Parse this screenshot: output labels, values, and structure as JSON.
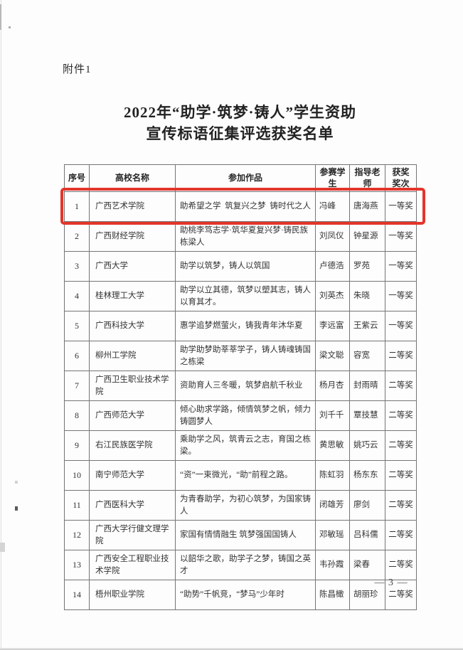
{
  "page": {
    "attachment_label": "附件1",
    "title_line1": "2022年“助学·筑梦·铸人”学生资助",
    "title_line2": "宣传标语征集评选获奖名单",
    "page_number": "— 3 —"
  },
  "highlight": {
    "row_index": 1,
    "color": "#e3352b"
  },
  "table": {
    "headers": [
      "序号",
      "高校名称",
      "参加作品",
      "参赛学\n生",
      "指导老\n师",
      "获奖\n奖次"
    ],
    "rows": [
      {
        "no": "1",
        "school": "广西艺术学院",
        "work": "助希望之学  筑复兴之梦  铸时代之人",
        "student": "冯峰",
        "teacher": "唐海燕",
        "award": "一等奖"
      },
      {
        "no": "2",
        "school": "广西财经学院",
        "work": "助桃李笃志学·筑华夏复兴梦·铸民族栋梁人",
        "student": "刘凤仪",
        "teacher": "钟星源",
        "award": "一等奖"
      },
      {
        "no": "3",
        "school": "广西大学",
        "work": "助学以筑梦，铸人以筑国",
        "student": "卢德浩",
        "teacher": "罗苑",
        "award": "一等奖"
      },
      {
        "no": "4",
        "school": "桂林理工大学",
        "work": "助学以立其德，筑梦以塑其志，铸人以育其才。",
        "student": "刘英杰",
        "teacher": "朱晓",
        "award": "一等奖"
      },
      {
        "no": "5",
        "school": "广西科技大学",
        "work": "惠学追梦燃萤火，铸我青年沐华夏",
        "student": "李远富",
        "teacher": "王紫云",
        "award": "一等奖"
      },
      {
        "no": "6",
        "school": "柳州工学院",
        "work": "助学助梦助莘莘学子，铸人铸魂铸国之栋梁",
        "student": "梁文聪",
        "teacher": "容宽",
        "award": "二等奖"
      },
      {
        "no": "7",
        "school": "广西卫生职业技术学院",
        "work": "资助育人三冬暖，筑梦启航千秋业",
        "student": "杨月杏",
        "teacher": "封雨晴",
        "award": "二等奖"
      },
      {
        "no": "8",
        "school": "广西师范大学",
        "work": "倾心助求学路，倾情筑梦之帆，倾力铸圆梦人",
        "student": "刘千千",
        "teacher": "覃技慧",
        "award": "二等奖"
      },
      {
        "no": "9",
        "school": "右江民族医学院",
        "work": "乘助学之风，筑青云之志，育国之栋梁。",
        "student": "黄思敏",
        "teacher": "姚巧云",
        "award": "二等奖"
      },
      {
        "no": "10",
        "school": "南宁师范大学",
        "work": "“资”一束微光，“助”前程之路。",
        "student": "陈虹羽",
        "teacher": "杨东东",
        "award": "二等奖"
      },
      {
        "no": "11",
        "school": "广西医科大学",
        "work": "为青春助学，为初心筑梦，为国家铸人",
        "student": "闭雄芳",
        "teacher": "廖剑",
        "award": "二等奖"
      },
      {
        "no": "12",
        "school": "广西大学行健文理学院",
        "work": "家国有情情融生 筑梦强国国铸人",
        "student": "邓敏瑶",
        "teacher": "吕科儒",
        "award": "二等奖"
      },
      {
        "no": "13",
        "school": "广西安全工程职业技术学院",
        "work": "以韶华之歌，助学子之梦，铸国之英才",
        "student": "韦孙霞",
        "teacher": "梁春",
        "award": "二等奖"
      },
      {
        "no": "14",
        "school": "梧州职业学院",
        "work": "“助势”千帆竞，“梦马”少年时",
        "student": "陈昌橄",
        "teacher": "胡丽珍",
        "award": "二等奖"
      }
    ]
  }
}
